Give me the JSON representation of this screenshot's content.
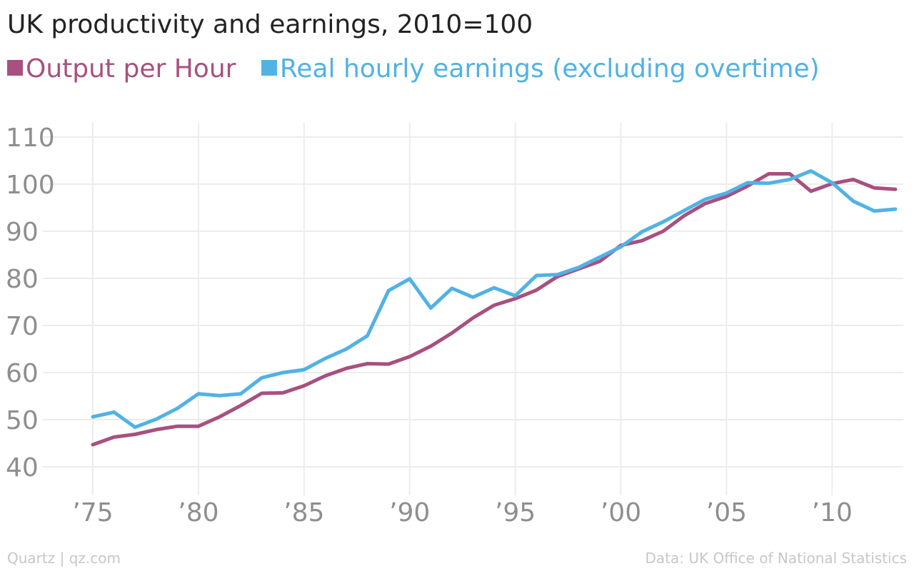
{
  "chart_data": {
    "type": "line",
    "title": "UK productivity and earnings, 2010=100",
    "xlabel": "",
    "ylabel": "",
    "xlim": [
      1973.3,
      2014
    ],
    "ylim": [
      35,
      115
    ],
    "grid": true,
    "legend_position": "top-left",
    "yticks": [
      40,
      50,
      60,
      70,
      80,
      90,
      100,
      110
    ],
    "ytick_labels": [
      "40",
      "50",
      "60",
      "70",
      "80",
      "90",
      "100",
      "110"
    ],
    "xticks": [
      1975,
      1980,
      1985,
      1990,
      1995,
      2000,
      2005,
      2010
    ],
    "xtick_labels": [
      "’75",
      "’80",
      "’85",
      "’90",
      "’95",
      "’00",
      "’05",
      "’10"
    ],
    "x": [
      1975,
      1976,
      1977,
      1978,
      1979,
      1980,
      1981,
      1982,
      1983,
      1984,
      1985,
      1986,
      1987,
      1988,
      1989,
      1990,
      1991,
      1992,
      1993,
      1994,
      1995,
      1996,
      1997,
      1998,
      1999,
      2000,
      2001,
      2002,
      2003,
      2004,
      2005,
      2006,
      2007,
      2008,
      2009,
      2010,
      2011,
      2012,
      2013
    ],
    "series": [
      {
        "name": "Output per Hour",
        "color": "#a8507f",
        "values": [
          44.7,
          46.3,
          46.9,
          47.9,
          48.6,
          48.6,
          50.6,
          53.0,
          55.6,
          55.7,
          57.2,
          59.3,
          60.9,
          61.9,
          61.8,
          63.4,
          65.6,
          68.4,
          71.6,
          74.3,
          75.7,
          77.5,
          80.4,
          82.0,
          83.6,
          87.0,
          88.0,
          90.0,
          93.3,
          95.9,
          97.4,
          99.6,
          102.2,
          102.2,
          98.5,
          100.1,
          101.0,
          99.2,
          98.9
        ]
      },
      {
        "name": "Real hourly earnings (excluding overtime)",
        "color": "#51b2e5",
        "values": [
          50.6,
          51.6,
          48.4,
          50.1,
          52.4,
          55.5,
          55.1,
          55.5,
          58.9,
          60.0,
          60.6,
          63.0,
          65.0,
          67.8,
          77.4,
          79.9,
          73.7,
          77.9,
          76.0,
          78.0,
          76.3,
          80.6,
          80.8,
          82.3,
          84.5,
          86.7,
          89.9,
          92.0,
          94.4,
          96.8,
          98.1,
          100.3,
          100.2,
          101.0,
          102.8,
          100.3,
          96.4,
          94.3,
          94.7
        ]
      }
    ]
  },
  "footer": {
    "source_left": "Quartz | qz.com",
    "source_right": "Data: UK Office of National Statistics"
  }
}
